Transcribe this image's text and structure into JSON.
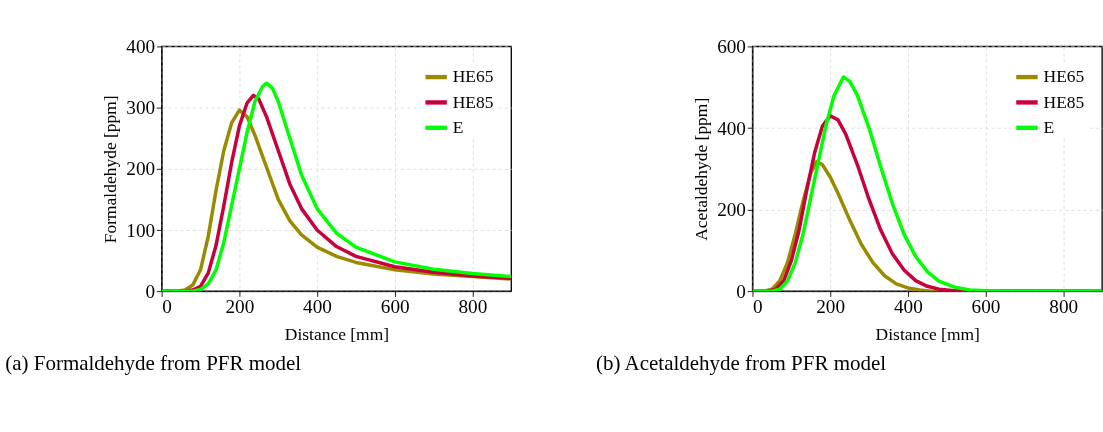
{
  "chart_data": [
    {
      "type": "line",
      "xlabel": "Distance [mm]",
      "ylabel": "Formaldehyde [ppm]",
      "annotations": [
        "(a) Formaldehyde from PFR model"
      ],
      "xlim": [
        0,
        900
      ],
      "xticks": [
        0,
        200,
        400,
        600,
        800
      ],
      "ylim": [
        0,
        400
      ],
      "yticks": [
        0,
        100,
        200,
        300,
        400
      ],
      "grid": true,
      "legend": "top right",
      "line_style": "solid",
      "marker": "none",
      "series": [
        {
          "name": "HE65",
          "color": "#9a8a00",
          "x": [
            0,
            40,
            60,
            80,
            100,
            120,
            140,
            160,
            180,
            200,
            220,
            240,
            260,
            280,
            300,
            330,
            360,
            400,
            450,
            500,
            600,
            700,
            800,
            900
          ],
          "values": [
            0,
            0,
            2,
            10,
            35,
            90,
            165,
            230,
            275,
            296,
            285,
            255,
            220,
            185,
            150,
            115,
            92,
            72,
            57,
            47,
            35,
            28,
            24,
            20
          ]
        },
        {
          "name": "HE85",
          "color": "#c8003c",
          "x": [
            0,
            60,
            80,
            100,
            120,
            140,
            160,
            180,
            200,
            220,
            236,
            250,
            270,
            300,
            330,
            360,
            400,
            450,
            500,
            600,
            700,
            800,
            900
          ],
          "values": [
            0,
            0,
            2,
            8,
            30,
            75,
            140,
            210,
            270,
            308,
            320,
            314,
            285,
            230,
            175,
            135,
            100,
            73,
            57,
            40,
            31,
            25,
            21
          ]
        },
        {
          "name": "E",
          "color": "#00ff00",
          "x": [
            0,
            80,
            100,
            120,
            140,
            160,
            180,
            200,
            220,
            240,
            260,
            270,
            285,
            300,
            330,
            360,
            400,
            450,
            500,
            600,
            700,
            800,
            900
          ],
          "values": [
            0,
            0,
            3,
            12,
            35,
            80,
            140,
            200,
            260,
            310,
            335,
            340,
            332,
            310,
            250,
            190,
            135,
            95,
            72,
            48,
            36,
            29,
            24
          ]
        }
      ]
    },
    {
      "type": "line",
      "xlabel": "Distance [mm]",
      "ylabel": "Acetaldehyde [ppm]",
      "annotations": [
        "(b) Acetaldehyde from PFR model"
      ],
      "xlim": [
        0,
        900
      ],
      "xticks": [
        0,
        200,
        400,
        600,
        800
      ],
      "ylim": [
        0,
        600
      ],
      "yticks": [
        0,
        200,
        400,
        600
      ],
      "grid": true,
      "legend": "top right",
      "line_style": "solid",
      "marker": "none",
      "series": [
        {
          "name": "HE65",
          "color": "#9a8a00",
          "x": [
            0,
            30,
            50,
            70,
            90,
            110,
            130,
            150,
            165,
            180,
            200,
            220,
            250,
            280,
            310,
            340,
            370,
            400,
            430,
            460,
            900
          ],
          "values": [
            0,
            0,
            5,
            25,
            70,
            140,
            220,
            290,
            318,
            310,
            280,
            240,
            175,
            115,
            70,
            38,
            18,
            8,
            3,
            0,
            0
          ]
        },
        {
          "name": "HE85",
          "color": "#c8003c",
          "x": [
            0,
            40,
            60,
            80,
            100,
            120,
            140,
            160,
            180,
            200,
            220,
            240,
            270,
            300,
            330,
            360,
            390,
            420,
            450,
            480,
            520,
            560,
            900
          ],
          "values": [
            0,
            0,
            5,
            25,
            75,
            150,
            250,
            340,
            405,
            430,
            420,
            385,
            310,
            225,
            150,
            92,
            52,
            26,
            12,
            5,
            1,
            0,
            0
          ]
        },
        {
          "name": "E",
          "color": "#00ff00",
          "x": [
            0,
            50,
            70,
            90,
            110,
            130,
            150,
            170,
            190,
            210,
            234,
            250,
            270,
            300,
            330,
            360,
            390,
            420,
            450,
            480,
            520,
            560,
            600,
            650,
            900
          ],
          "values": [
            0,
            0,
            5,
            25,
            70,
            140,
            230,
            320,
            410,
            480,
            525,
            515,
            480,
            400,
            305,
            215,
            140,
            85,
            48,
            25,
            10,
            3,
            1,
            0,
            0
          ]
        }
      ]
    }
  ]
}
